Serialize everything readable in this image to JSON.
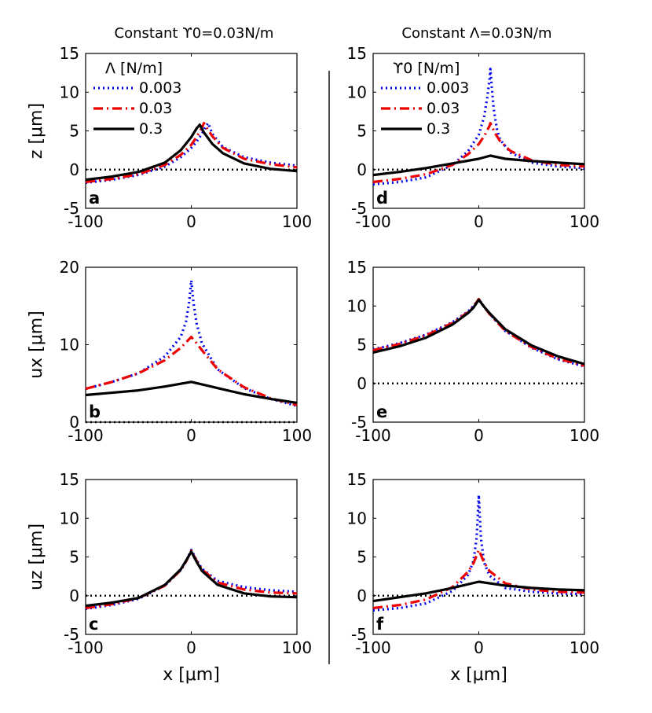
{
  "titles": {
    "left": "Constant ϒ0=0.03N/m",
    "right": "Constant Λ=0.03N/m"
  },
  "styles": {
    "series_colors": [
      "#0000ee",
      "#ee0000",
      "#000000"
    ],
    "zero_line_color": "#000000"
  },
  "chart_data": [
    {
      "id": "a",
      "type": "line",
      "panel_label": "a",
      "xlabel": "",
      "ylabel": "z [μm]",
      "xlim": [
        -100,
        100
      ],
      "ylim": [
        -5,
        15
      ],
      "xticks": [
        -100,
        0,
        100
      ],
      "yticks": [
        -5,
        0,
        5,
        10,
        15
      ],
      "legend": {
        "title": "Λ [N/m]",
        "entries": [
          "0.003",
          "0.03",
          "0.3"
        ],
        "position": "top-left"
      },
      "series": [
        {
          "name": "0.003",
          "style": "dotted",
          "x": [
            -100,
            -75,
            -50,
            -25,
            -10,
            0,
            5,
            10,
            13,
            16,
            20,
            30,
            50,
            75,
            100
          ],
          "y": [
            -1.7,
            -1.3,
            -0.7,
            0.4,
            1.6,
            2.8,
            3.6,
            4.6,
            5.4,
            6.0,
            4.6,
            2.9,
            1.6,
            0.9,
            0.5
          ]
        },
        {
          "name": "0.03",
          "style": "dashdot",
          "x": [
            -100,
            -75,
            -50,
            -25,
            -10,
            0,
            5,
            10,
            12,
            15,
            20,
            30,
            50,
            75,
            100
          ],
          "y": [
            -1.6,
            -1.2,
            -0.6,
            0.6,
            1.9,
            3.2,
            4.2,
            5.4,
            6.0,
            5.3,
            4.3,
            2.8,
            1.4,
            0.7,
            0.3
          ]
        },
        {
          "name": "0.3",
          "style": "solid",
          "x": [
            -100,
            -75,
            -50,
            -25,
            -10,
            0,
            5,
            8,
            12,
            20,
            30,
            50,
            75,
            100
          ],
          "y": [
            -1.3,
            -0.9,
            -0.3,
            0.9,
            2.5,
            4.2,
            5.3,
            5.8,
            4.8,
            3.3,
            2.1,
            0.8,
            0.1,
            -0.2
          ]
        }
      ],
      "zero_line": 0
    },
    {
      "id": "b",
      "type": "line",
      "panel_label": "b",
      "xlabel": "",
      "ylabel": "ux [μm]",
      "xlim": [
        -100,
        100
      ],
      "ylim": [
        0,
        20
      ],
      "xticks": [
        -100,
        0,
        100
      ],
      "yticks": [
        0,
        10,
        20
      ],
      "series": [
        {
          "name": "0.003",
          "style": "dotted",
          "x": [
            -100,
            -75,
            -50,
            -25,
            -10,
            -5,
            -2,
            0,
            2,
            5,
            10,
            25,
            50,
            75,
            100
          ],
          "y": [
            4.3,
            5.2,
            6.3,
            8.5,
            11.0,
            13.0,
            15.5,
            18.3,
            15.5,
            12.8,
            10.2,
            6.8,
            4.4,
            3.0,
            2.1
          ]
        },
        {
          "name": "0.03",
          "style": "dashdot",
          "x": [
            -100,
            -75,
            -50,
            -25,
            -10,
            -5,
            0,
            5,
            10,
            25,
            50,
            75,
            100
          ],
          "y": [
            4.3,
            5.2,
            6.3,
            8.0,
            9.6,
            10.3,
            11.0,
            10.2,
            9.3,
            6.8,
            4.5,
            3.1,
            2.2
          ]
        },
        {
          "name": "0.3",
          "style": "solid",
          "x": [
            -100,
            -50,
            -25,
            0,
            25,
            50,
            75,
            100
          ],
          "y": [
            3.5,
            4.1,
            4.6,
            5.2,
            4.4,
            3.6,
            3.0,
            2.5
          ]
        }
      ],
      "zero_line": 0
    },
    {
      "id": "c",
      "type": "line",
      "panel_label": "c",
      "xlabel": "x [μm]",
      "ylabel": "uz [μm]",
      "xlim": [
        -100,
        100
      ],
      "ylim": [
        -5,
        15
      ],
      "xticks": [
        -100,
        0,
        100
      ],
      "yticks": [
        -5,
        0,
        5,
        10,
        15
      ],
      "series": [
        {
          "name": "0.003",
          "style": "dotted",
          "x": [
            -100,
            -75,
            -50,
            -25,
            -10,
            -5,
            0,
            5,
            10,
            25,
            50,
            75,
            100
          ],
          "y": [
            -1.7,
            -1.2,
            -0.4,
            1.3,
            3.3,
            4.4,
            5.9,
            4.6,
            3.5,
            1.9,
            1.1,
            0.7,
            0.5
          ]
        },
        {
          "name": "0.03",
          "style": "dashdot",
          "x": [
            -100,
            -75,
            -50,
            -25,
            -10,
            -5,
            0,
            5,
            10,
            25,
            50,
            75,
            100
          ],
          "y": [
            -1.6,
            -1.1,
            -0.3,
            1.3,
            3.3,
            4.4,
            5.8,
            4.5,
            3.4,
            1.7,
            0.8,
            0.4,
            0.3
          ]
        },
        {
          "name": "0.3",
          "style": "solid",
          "x": [
            -100,
            -75,
            -50,
            -25,
            -10,
            -5,
            0,
            5,
            10,
            25,
            50,
            75,
            100
          ],
          "y": [
            -1.3,
            -0.9,
            -0.3,
            1.4,
            3.4,
            4.5,
            5.7,
            4.4,
            3.2,
            1.4,
            0.3,
            -0.1,
            -0.2
          ]
        }
      ],
      "zero_line": 0
    },
    {
      "id": "d",
      "type": "line",
      "panel_label": "d",
      "xlabel": "",
      "ylabel": "",
      "xlim": [
        -100,
        100
      ],
      "ylim": [
        -5,
        15
      ],
      "xticks": [
        -100,
        0,
        100
      ],
      "yticks": [
        -5,
        0,
        5,
        10,
        15
      ],
      "legend": {
        "title": "ϒ0 [N/m]",
        "entries": [
          "0.003",
          "0.03",
          "0.3"
        ],
        "position": "top-left"
      },
      "series": [
        {
          "name": "0.003",
          "style": "dotted",
          "x": [
            -100,
            -75,
            -50,
            -25,
            -10,
            0,
            5,
            8,
            10,
            11,
            12,
            14,
            17,
            20,
            30,
            50,
            75,
            100
          ],
          "y": [
            -1.9,
            -1.6,
            -1.0,
            0.6,
            2.4,
            4.5,
            6.8,
            9.3,
            11.5,
            13.0,
            11.2,
            8.0,
            5.3,
            3.9,
            2.2,
            0.9,
            0.4,
            0.2
          ]
        },
        {
          "name": "0.03",
          "style": "dashdot",
          "x": [
            -100,
            -75,
            -50,
            -25,
            -10,
            0,
            5,
            10,
            11,
            15,
            20,
            30,
            50,
            75,
            100
          ],
          "y": [
            -1.6,
            -1.2,
            -0.6,
            0.6,
            2.0,
            3.3,
            4.3,
            5.6,
            6.0,
            4.8,
            3.7,
            2.4,
            1.2,
            0.6,
            0.4
          ]
        },
        {
          "name": "0.3",
          "style": "solid",
          "x": [
            -100,
            -75,
            -50,
            -25,
            0,
            11,
            25,
            50,
            75,
            100
          ],
          "y": [
            -0.7,
            -0.3,
            0.2,
            0.8,
            1.4,
            1.8,
            1.4,
            1.1,
            0.9,
            0.7
          ]
        }
      ],
      "zero_line": 0
    },
    {
      "id": "e",
      "type": "line",
      "panel_label": "e",
      "xlabel": "",
      "ylabel": "",
      "xlim": [
        -100,
        100
      ],
      "ylim": [
        -5,
        15
      ],
      "xticks": [
        -100,
        0,
        100
      ],
      "yticks": [
        -5,
        0,
        5,
        10,
        15
      ],
      "series": [
        {
          "name": "0.003",
          "style": "dotted",
          "x": [
            -100,
            -75,
            -50,
            -25,
            -10,
            -5,
            0,
            5,
            10,
            25,
            50,
            75,
            100
          ],
          "y": [
            4.4,
            5.2,
            6.3,
            7.9,
            9.3,
            10.0,
            10.9,
            9.9,
            9.0,
            6.8,
            4.6,
            3.1,
            2.2
          ]
        },
        {
          "name": "0.03",
          "style": "dashdot",
          "x": [
            -100,
            -75,
            -50,
            -25,
            -10,
            -5,
            0,
            5,
            10,
            25,
            50,
            75,
            100
          ],
          "y": [
            4.3,
            5.1,
            6.2,
            7.8,
            9.2,
            9.9,
            10.9,
            9.9,
            9.0,
            6.8,
            4.7,
            3.2,
            2.3
          ]
        },
        {
          "name": "0.3",
          "style": "solid",
          "x": [
            -100,
            -75,
            -50,
            -25,
            -10,
            -5,
            0,
            5,
            10,
            25,
            50,
            75,
            100
          ],
          "y": [
            4.0,
            4.8,
            5.9,
            7.6,
            9.1,
            9.8,
            10.8,
            9.9,
            9.1,
            7.0,
            4.9,
            3.5,
            2.5
          ]
        }
      ],
      "zero_line": 0
    },
    {
      "id": "f",
      "type": "line",
      "panel_label": "f",
      "xlabel": "x [μm]",
      "ylabel": "",
      "xlim": [
        -100,
        100
      ],
      "ylim": [
        -5,
        15
      ],
      "xticks": [
        -100,
        0,
        100
      ],
      "yticks": [
        -5,
        0,
        5,
        10,
        15
      ],
      "series": [
        {
          "name": "0.003",
          "style": "dotted",
          "x": [
            -100,
            -75,
            -50,
            -25,
            -10,
            -5,
            -2,
            0,
            2,
            5,
            10,
            25,
            50,
            75,
            100
          ],
          "y": [
            -1.9,
            -1.6,
            -1.0,
            0.6,
            2.7,
            4.5,
            7.5,
            13.0,
            7.5,
            4.3,
            2.6,
            1.0,
            0.5,
            0.3,
            0.2
          ]
        },
        {
          "name": "0.03",
          "style": "dashdot",
          "x": [
            -100,
            -75,
            -50,
            -25,
            -10,
            -5,
            0,
            5,
            10,
            25,
            50,
            75,
            100
          ],
          "y": [
            -1.6,
            -1.2,
            -0.5,
            1.1,
            3.1,
            4.2,
            5.9,
            4.3,
            3.2,
            1.6,
            0.8,
            0.5,
            0.4
          ]
        },
        {
          "name": "0.3",
          "style": "solid",
          "x": [
            -100,
            -75,
            -50,
            -25,
            0,
            25,
            50,
            75,
            100
          ],
          "y": [
            -0.7,
            -0.2,
            0.3,
            1.0,
            1.8,
            1.3,
            1.0,
            0.8,
            0.7
          ]
        }
      ],
      "zero_line": 0
    }
  ]
}
